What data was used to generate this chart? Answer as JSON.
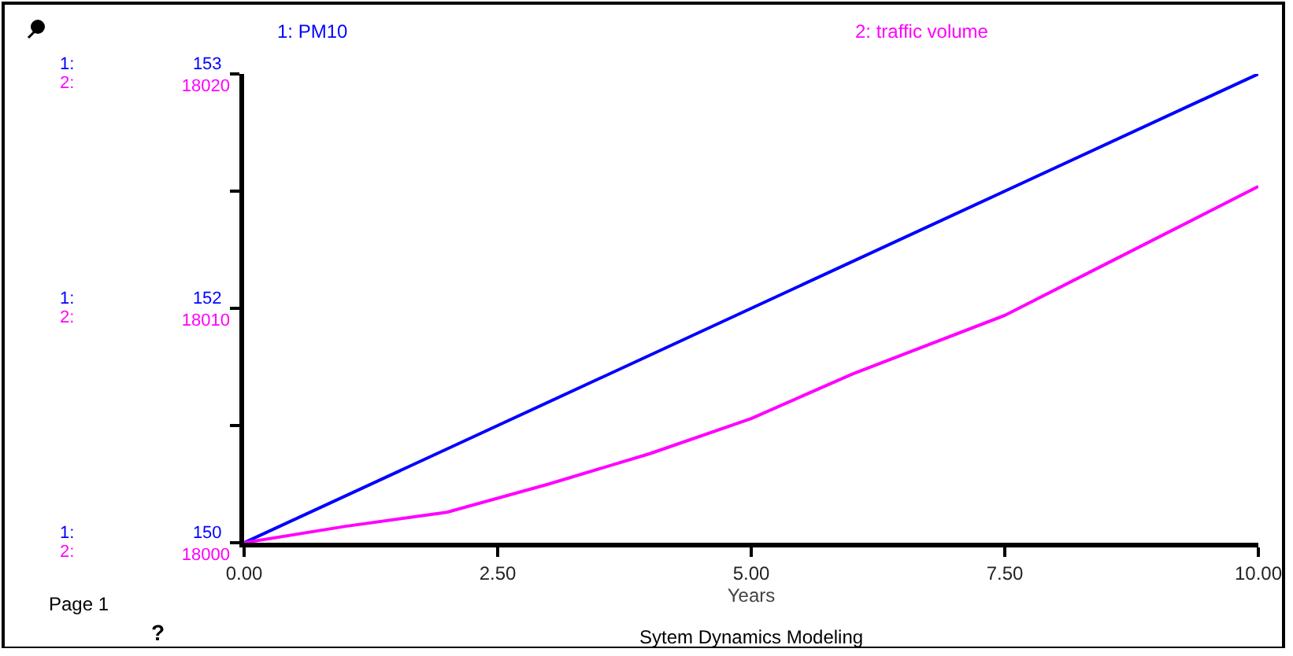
{
  "chart_data": {
    "type": "line",
    "xlabel": "Years",
    "annotations": [
      "Page 1",
      "?",
      "Sytem Dynamics Modeling",
      "1:",
      "2:",
      "1:",
      "2:",
      "1:",
      "2:"
    ],
    "xlim": [
      0,
      10
    ],
    "xticks": [
      {
        "value": 0,
        "label": "0.00"
      },
      {
        "value": 2.5,
        "label": "2.50"
      },
      {
        "value": 5,
        "label": "5.00"
      },
      {
        "value": 7.5,
        "label": "7.50"
      },
      {
        "value": 10,
        "label": "10.00"
      }
    ],
    "ylim": [
      150,
      153
    ],
    "yticks": [
      {
        "value": 150,
        "label": "150"
      },
      {
        "value": 150.75,
        "label": null
      },
      {
        "value": 151.5,
        "label": "152"
      },
      {
        "value": 152.25,
        "label": null
      },
      153
    ],
    "y2lim": [
      18000,
      18020
    ],
    "y2ticks": [
      18000,
      18010,
      18020
    ],
    "series": [
      {
        "name": "1: PM10",
        "color": "#0000ff",
        "x": [
          0,
          2.5,
          5,
          7.5,
          10
        ],
        "values": [
          150,
          150.75,
          151.5,
          152.25,
          153
        ]
      },
      {
        "name": "2: traffic volume",
        "color": "#ff00ff",
        "axis": "y2",
        "x": [
          0,
          1,
          2,
          3,
          4,
          5,
          6,
          7.5,
          8.5,
          10
        ],
        "values": [
          18000,
          18000.7,
          18001.3,
          18002.5,
          18003.8,
          18005.3,
          18007.2,
          18009.7,
          18011.9,
          18015.2
        ]
      }
    ],
    "grid": false,
    "legend": false,
    "marker": "none",
    "line_style": "solid"
  }
}
